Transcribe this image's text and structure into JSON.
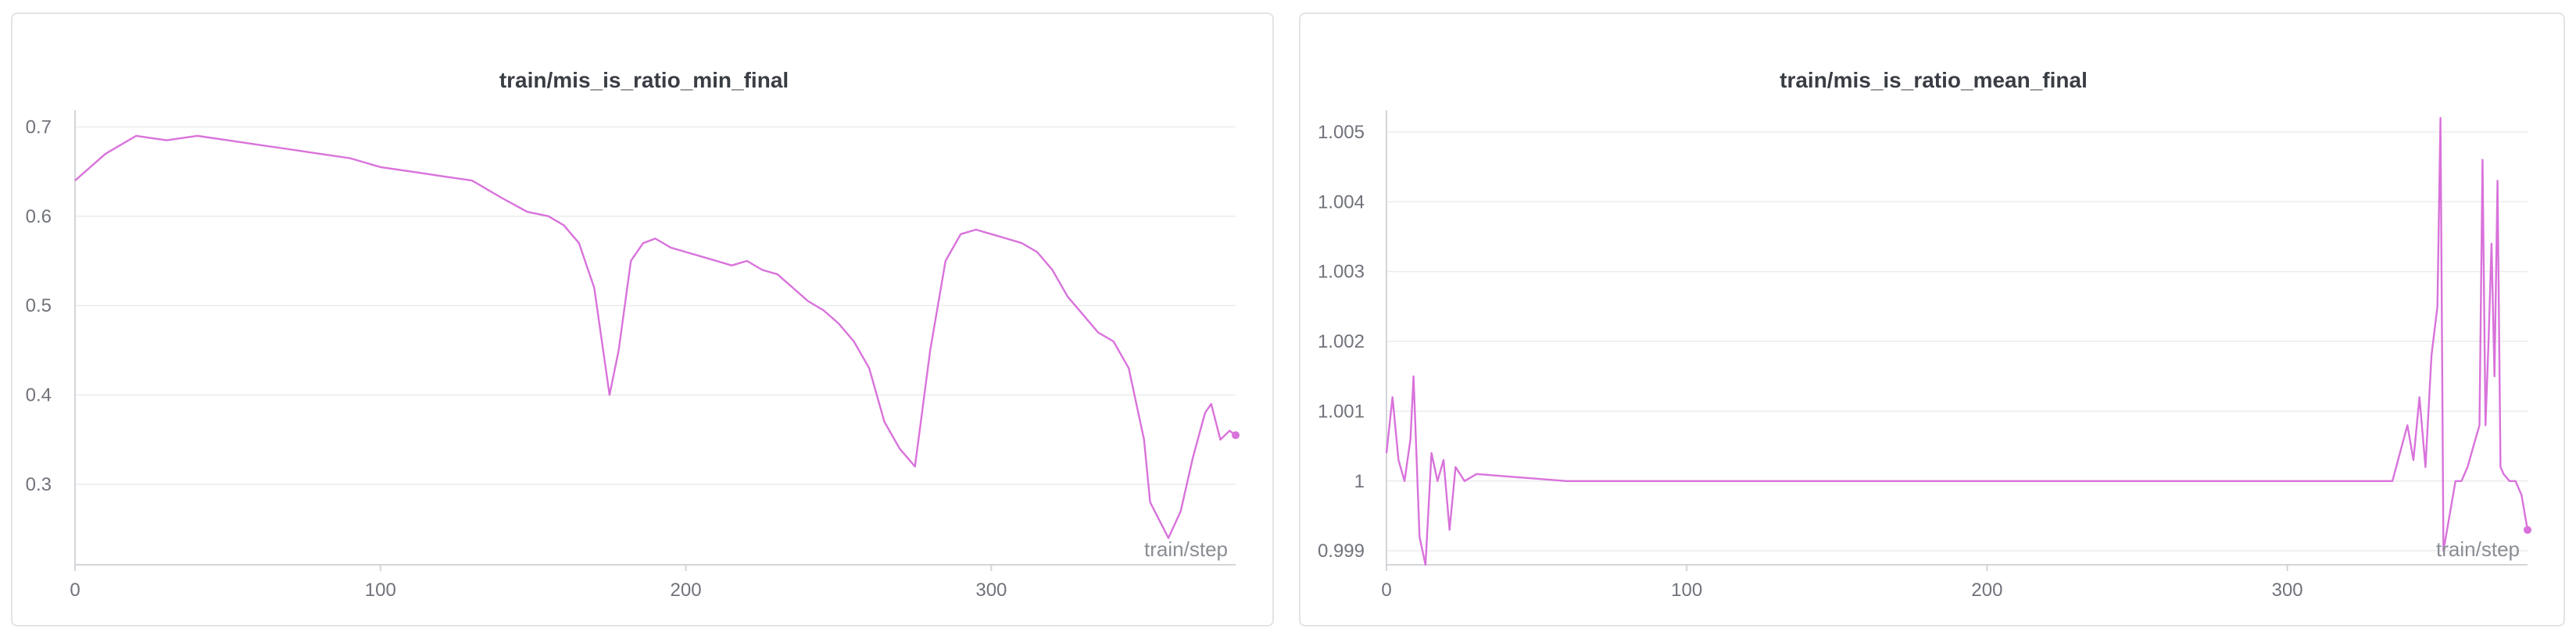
{
  "chart_data": [
    {
      "type": "line",
      "title": "train/mis_is_ratio_min_final",
      "xlabel": "train/step",
      "ylabel": "",
      "xlim": [
        0,
        380
      ],
      "ylim": [
        0.21,
        0.71
      ],
      "xticks": [
        0,
        100,
        200,
        300
      ],
      "xtick_labels": [
        "0",
        "100",
        "200",
        "300"
      ],
      "yticks": [
        0.3,
        0.4,
        0.5,
        0.6,
        0.7
      ],
      "ytick_labels": [
        "0.3",
        "0.4",
        "0.5",
        "0.6",
        "0.7"
      ],
      "grid": true,
      "color": "#d972db",
      "series": [
        {
          "name": "train/mis_is_ratio_min_final",
          "x": [
            0,
            10,
            20,
            30,
            40,
            50,
            60,
            70,
            80,
            90,
            100,
            110,
            120,
            130,
            140,
            148,
            155,
            160,
            165,
            170,
            175,
            178,
            182,
            186,
            190,
            195,
            200,
            205,
            210,
            215,
            220,
            225,
            230,
            235,
            240,
            245,
            250,
            255,
            260,
            265,
            270,
            275,
            280,
            285,
            290,
            295,
            300,
            305,
            310,
            315,
            320,
            325,
            330,
            335,
            340,
            345,
            350,
            352,
            355,
            358,
            362,
            366,
            370,
            372,
            375,
            378,
            380
          ],
          "y": [
            0.64,
            0.67,
            0.69,
            0.685,
            0.69,
            0.685,
            0.68,
            0.675,
            0.67,
            0.665,
            0.655,
            0.65,
            0.645,
            0.64,
            0.62,
            0.605,
            0.6,
            0.59,
            0.57,
            0.52,
            0.4,
            0.45,
            0.55,
            0.57,
            0.575,
            0.565,
            0.56,
            0.555,
            0.55,
            0.545,
            0.55,
            0.54,
            0.535,
            0.52,
            0.505,
            0.495,
            0.48,
            0.46,
            0.43,
            0.37,
            0.34,
            0.32,
            0.45,
            0.55,
            0.58,
            0.585,
            0.58,
            0.575,
            0.57,
            0.56,
            0.54,
            0.51,
            0.49,
            0.47,
            0.46,
            0.43,
            0.35,
            0.28,
            0.26,
            0.24,
            0.27,
            0.33,
            0.38,
            0.39,
            0.35,
            0.36,
            0.355
          ]
        }
      ]
    },
    {
      "type": "line",
      "title": "train/mis_is_ratio_mean_final",
      "xlabel": "train/step",
      "ylabel": "",
      "xlim": [
        0,
        380
      ],
      "ylim": [
        0.9988,
        1.0052
      ],
      "xticks": [
        0,
        100,
        200,
        300
      ],
      "xtick_labels": [
        "0",
        "100",
        "200",
        "300"
      ],
      "yticks": [
        0.999,
        1,
        1.001,
        1.002,
        1.003,
        1.004,
        1.005
      ],
      "ytick_labels": [
        "0.999",
        "1",
        "1.001",
        "1.002",
        "1.003",
        "1.004",
        "1.005"
      ],
      "grid": true,
      "color": "#d972db",
      "series": [
        {
          "name": "train/mis_is_ratio_mean_final",
          "x": [
            0,
            2,
            4,
            6,
            8,
            9,
            11,
            13,
            15,
            17,
            19,
            21,
            23,
            26,
            30,
            60,
            100,
            140,
            180,
            220,
            260,
            300,
            320,
            335,
            340,
            342,
            344,
            346,
            348,
            350,
            351,
            352,
            354,
            356,
            358,
            360,
            362,
            364,
            365,
            366,
            367,
            368,
            369,
            370,
            371,
            372,
            374,
            376,
            378,
            380
          ],
          "y": [
            1.0004,
            1.0012,
            1.0003,
            1.0,
            1.0006,
            1.0015,
            0.9992,
            0.9988,
            1.0004,
            1.0,
            1.0003,
            0.9993,
            1.0002,
            1.0,
            1.0001,
            1.0,
            1.0,
            1.0,
            1.0,
            1.0,
            1.0,
            1.0,
            1.0,
            1.0,
            1.0008,
            1.0003,
            1.0012,
            1.0002,
            1.0018,
            1.0025,
            1.0052,
            0.999,
            0.9995,
            1.0,
            1.0,
            1.0002,
            1.0005,
            1.0008,
            1.0046,
            1.0008,
            1.002,
            1.0034,
            1.0015,
            1.0043,
            1.0002,
            1.0001,
            1.0,
            1.0,
            0.9998,
            0.9993
          ]
        }
      ]
    }
  ]
}
